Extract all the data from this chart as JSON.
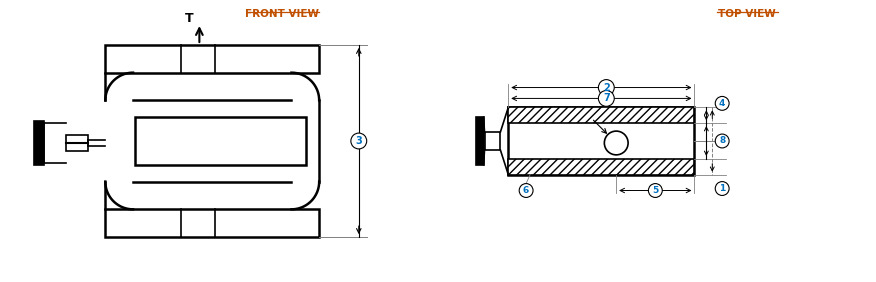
{
  "bg_color": "#ffffff",
  "line_color": "#000000",
  "label_color": "#0070c0",
  "title_color": "#c05000",
  "front_view_title": "FRONT VIEW",
  "top_view_title": "TOP VIEW",
  "dim_labels": [
    "1",
    "2",
    "3",
    "4",
    "5",
    "6",
    "7",
    "8"
  ],
  "T_label": "T"
}
